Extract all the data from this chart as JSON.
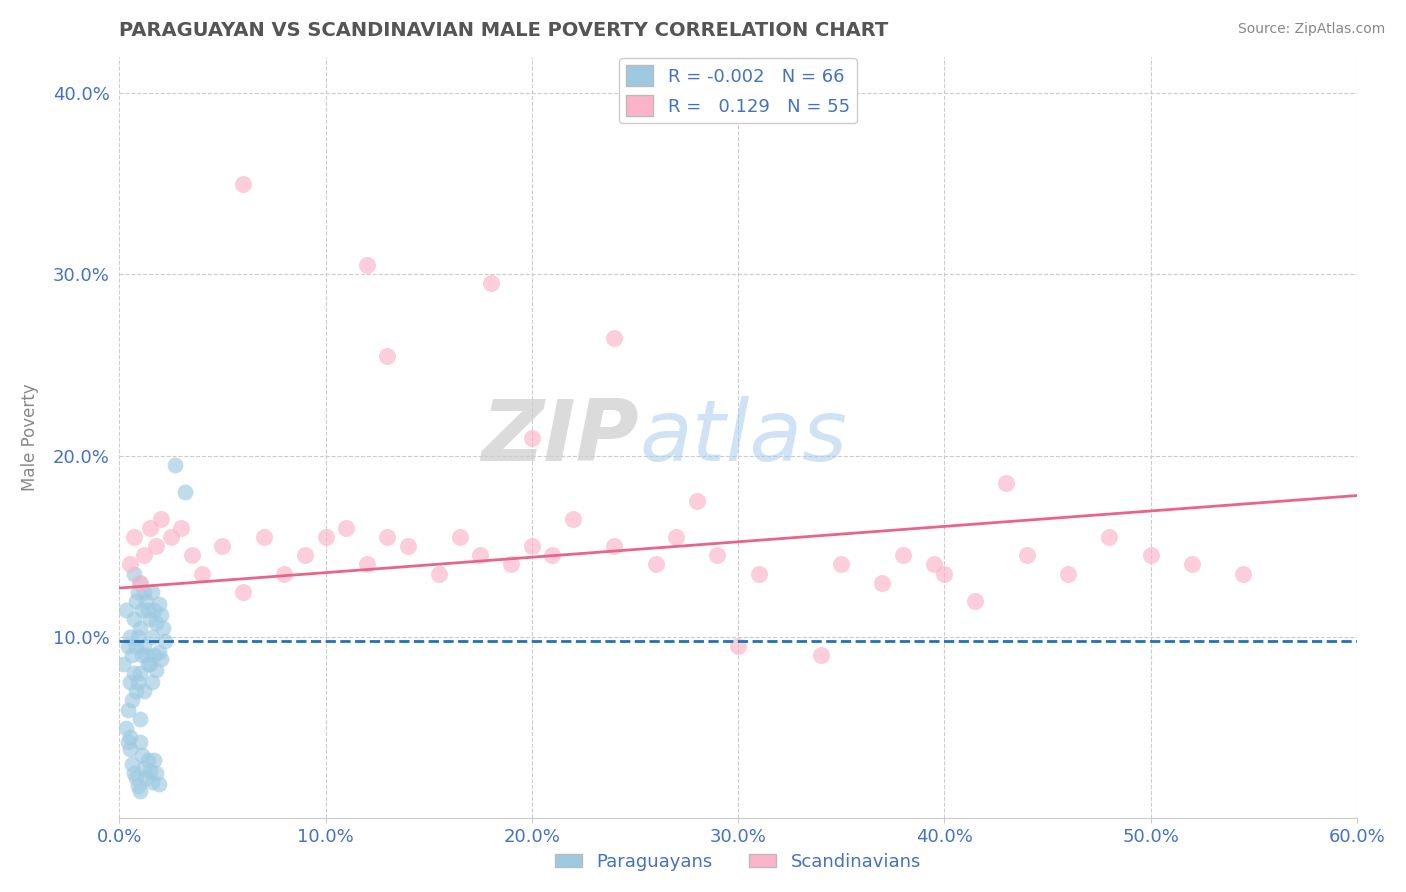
{
  "title": "PARAGUAYAN VS SCANDINAVIAN MALE POVERTY CORRELATION CHART",
  "source": "Source: ZipAtlas.com",
  "ylabel_label": "Male Poverty",
  "xlim": [
    0.0,
    0.6
  ],
  "ylim": [
    0.0,
    0.42
  ],
  "xticks": [
    0.0,
    0.1,
    0.2,
    0.3,
    0.4,
    0.5,
    0.6
  ],
  "xticklabels": [
    "0.0%",
    "10.0%",
    "20.0%",
    "30.0%",
    "40.0%",
    "50.0%",
    "60.0%"
  ],
  "yticks": [
    0.0,
    0.1,
    0.2,
    0.3,
    0.4
  ],
  "yticklabels": [
    "",
    "10.0%",
    "20.0%",
    "30.0%",
    "40.0%"
  ],
  "paraguayan_R": "-0.002",
  "paraguayan_N": 66,
  "scandinavian_R": "0.129",
  "scandinavian_N": 55,
  "paraguayan_color": "#9ecae1",
  "paraguayan_edge_color": "#6baed6",
  "scandinavian_color": "#fbb4c9",
  "scandinavian_edge_color": "#f768a1",
  "paraguayan_line_color": "#2171b5",
  "scandinavian_line_color": "#e8648a",
  "legend_label1": "Paraguayans",
  "legend_label2": "Scandinavians",
  "watermark_zip": "ZIP",
  "watermark_atlas": "atlas",
  "par_x": [
    0.002,
    0.003,
    0.004,
    0.004,
    0.005,
    0.005,
    0.005,
    0.006,
    0.006,
    0.007,
    0.007,
    0.007,
    0.008,
    0.008,
    0.008,
    0.009,
    0.009,
    0.009,
    0.01,
    0.01,
    0.01,
    0.01,
    0.011,
    0.011,
    0.012,
    0.012,
    0.012,
    0.013,
    0.013,
    0.014,
    0.014,
    0.015,
    0.015,
    0.016,
    0.016,
    0.016,
    0.017,
    0.017,
    0.018,
    0.018,
    0.019,
    0.019,
    0.02,
    0.02,
    0.021,
    0.022,
    0.003,
    0.004,
    0.005,
    0.006,
    0.007,
    0.008,
    0.009,
    0.01,
    0.01,
    0.011,
    0.012,
    0.013,
    0.014,
    0.015,
    0.016,
    0.017,
    0.018,
    0.019,
    0.027,
    0.032
  ],
  "par_y": [
    0.085,
    0.115,
    0.095,
    0.06,
    0.1,
    0.075,
    0.045,
    0.09,
    0.065,
    0.135,
    0.11,
    0.08,
    0.12,
    0.095,
    0.07,
    0.125,
    0.1,
    0.075,
    0.13,
    0.105,
    0.08,
    0.055,
    0.115,
    0.09,
    0.125,
    0.095,
    0.07,
    0.12,
    0.09,
    0.115,
    0.085,
    0.11,
    0.085,
    0.125,
    0.1,
    0.075,
    0.115,
    0.09,
    0.108,
    0.082,
    0.118,
    0.092,
    0.112,
    0.088,
    0.105,
    0.098,
    0.05,
    0.042,
    0.038,
    0.03,
    0.025,
    0.022,
    0.018,
    0.015,
    0.042,
    0.035,
    0.028,
    0.022,
    0.032,
    0.026,
    0.02,
    0.032,
    0.025,
    0.019,
    0.195,
    0.18
  ],
  "sca_x": [
    0.005,
    0.007,
    0.01,
    0.012,
    0.015,
    0.018,
    0.02,
    0.025,
    0.03,
    0.035,
    0.04,
    0.05,
    0.06,
    0.07,
    0.08,
    0.09,
    0.1,
    0.11,
    0.12,
    0.13,
    0.14,
    0.155,
    0.165,
    0.175,
    0.19,
    0.2,
    0.21,
    0.22,
    0.24,
    0.26,
    0.27,
    0.29,
    0.31,
    0.35,
    0.37,
    0.38,
    0.395,
    0.4,
    0.415,
    0.44,
    0.46,
    0.48,
    0.5,
    0.52,
    0.545,
    0.06,
    0.12,
    0.18,
    0.24,
    0.3,
    0.13,
    0.2,
    0.28,
    0.34,
    0.43
  ],
  "sca_y": [
    0.14,
    0.155,
    0.13,
    0.145,
    0.16,
    0.15,
    0.165,
    0.155,
    0.16,
    0.145,
    0.135,
    0.15,
    0.125,
    0.155,
    0.135,
    0.145,
    0.155,
    0.16,
    0.14,
    0.155,
    0.15,
    0.135,
    0.155,
    0.145,
    0.14,
    0.15,
    0.145,
    0.165,
    0.15,
    0.14,
    0.155,
    0.145,
    0.135,
    0.14,
    0.13,
    0.145,
    0.14,
    0.135,
    0.12,
    0.145,
    0.135,
    0.155,
    0.145,
    0.14,
    0.135,
    0.35,
    0.305,
    0.295,
    0.265,
    0.095,
    0.255,
    0.21,
    0.175,
    0.09,
    0.185
  ],
  "par_line_y0": 0.098,
  "par_line_y1": 0.098,
  "sca_line_y0": 0.127,
  "sca_line_y1": 0.178
}
